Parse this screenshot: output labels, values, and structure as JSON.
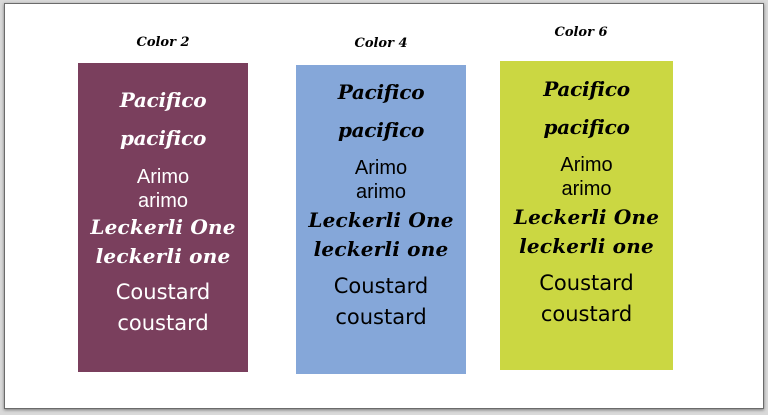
{
  "colors": {
    "card_1_bg": "#7a3f5d",
    "card_1_text": "#ffffff",
    "card_2_bg": "#85a7d9",
    "card_2_text": "#000000",
    "card_3_bg": "#cbd742",
    "card_3_text": "#000000"
  },
  "cards": [
    {
      "label": "Color 2",
      "pacifico_title": "Pacifico",
      "pacifico_lower": "pacifico",
      "arimo_title": "Arimo",
      "arimo_lower": "arimo",
      "leckerli_title": "Leckerli One",
      "leckerli_lower": "leckerli one",
      "coustard_title": "Coustard",
      "coustard_lower": "coustard"
    },
    {
      "label": "Color 4",
      "pacifico_title": "Pacifico",
      "pacifico_lower": "pacifico",
      "arimo_title": "Arimo",
      "arimo_lower": "arimo",
      "leckerli_title": "Leckerli One",
      "leckerli_lower": "leckerli one",
      "coustard_title": "Coustard",
      "coustard_lower": "coustard"
    },
    {
      "label": "Color 6",
      "pacifico_title": "Pacifico",
      "pacifico_lower": "pacifico",
      "arimo_title": "Arimo",
      "arimo_lower": "arimo",
      "leckerli_title": "Leckerli One",
      "leckerli_lower": "leckerli one",
      "coustard_title": "Coustard",
      "coustard_lower": "coustard"
    }
  ]
}
